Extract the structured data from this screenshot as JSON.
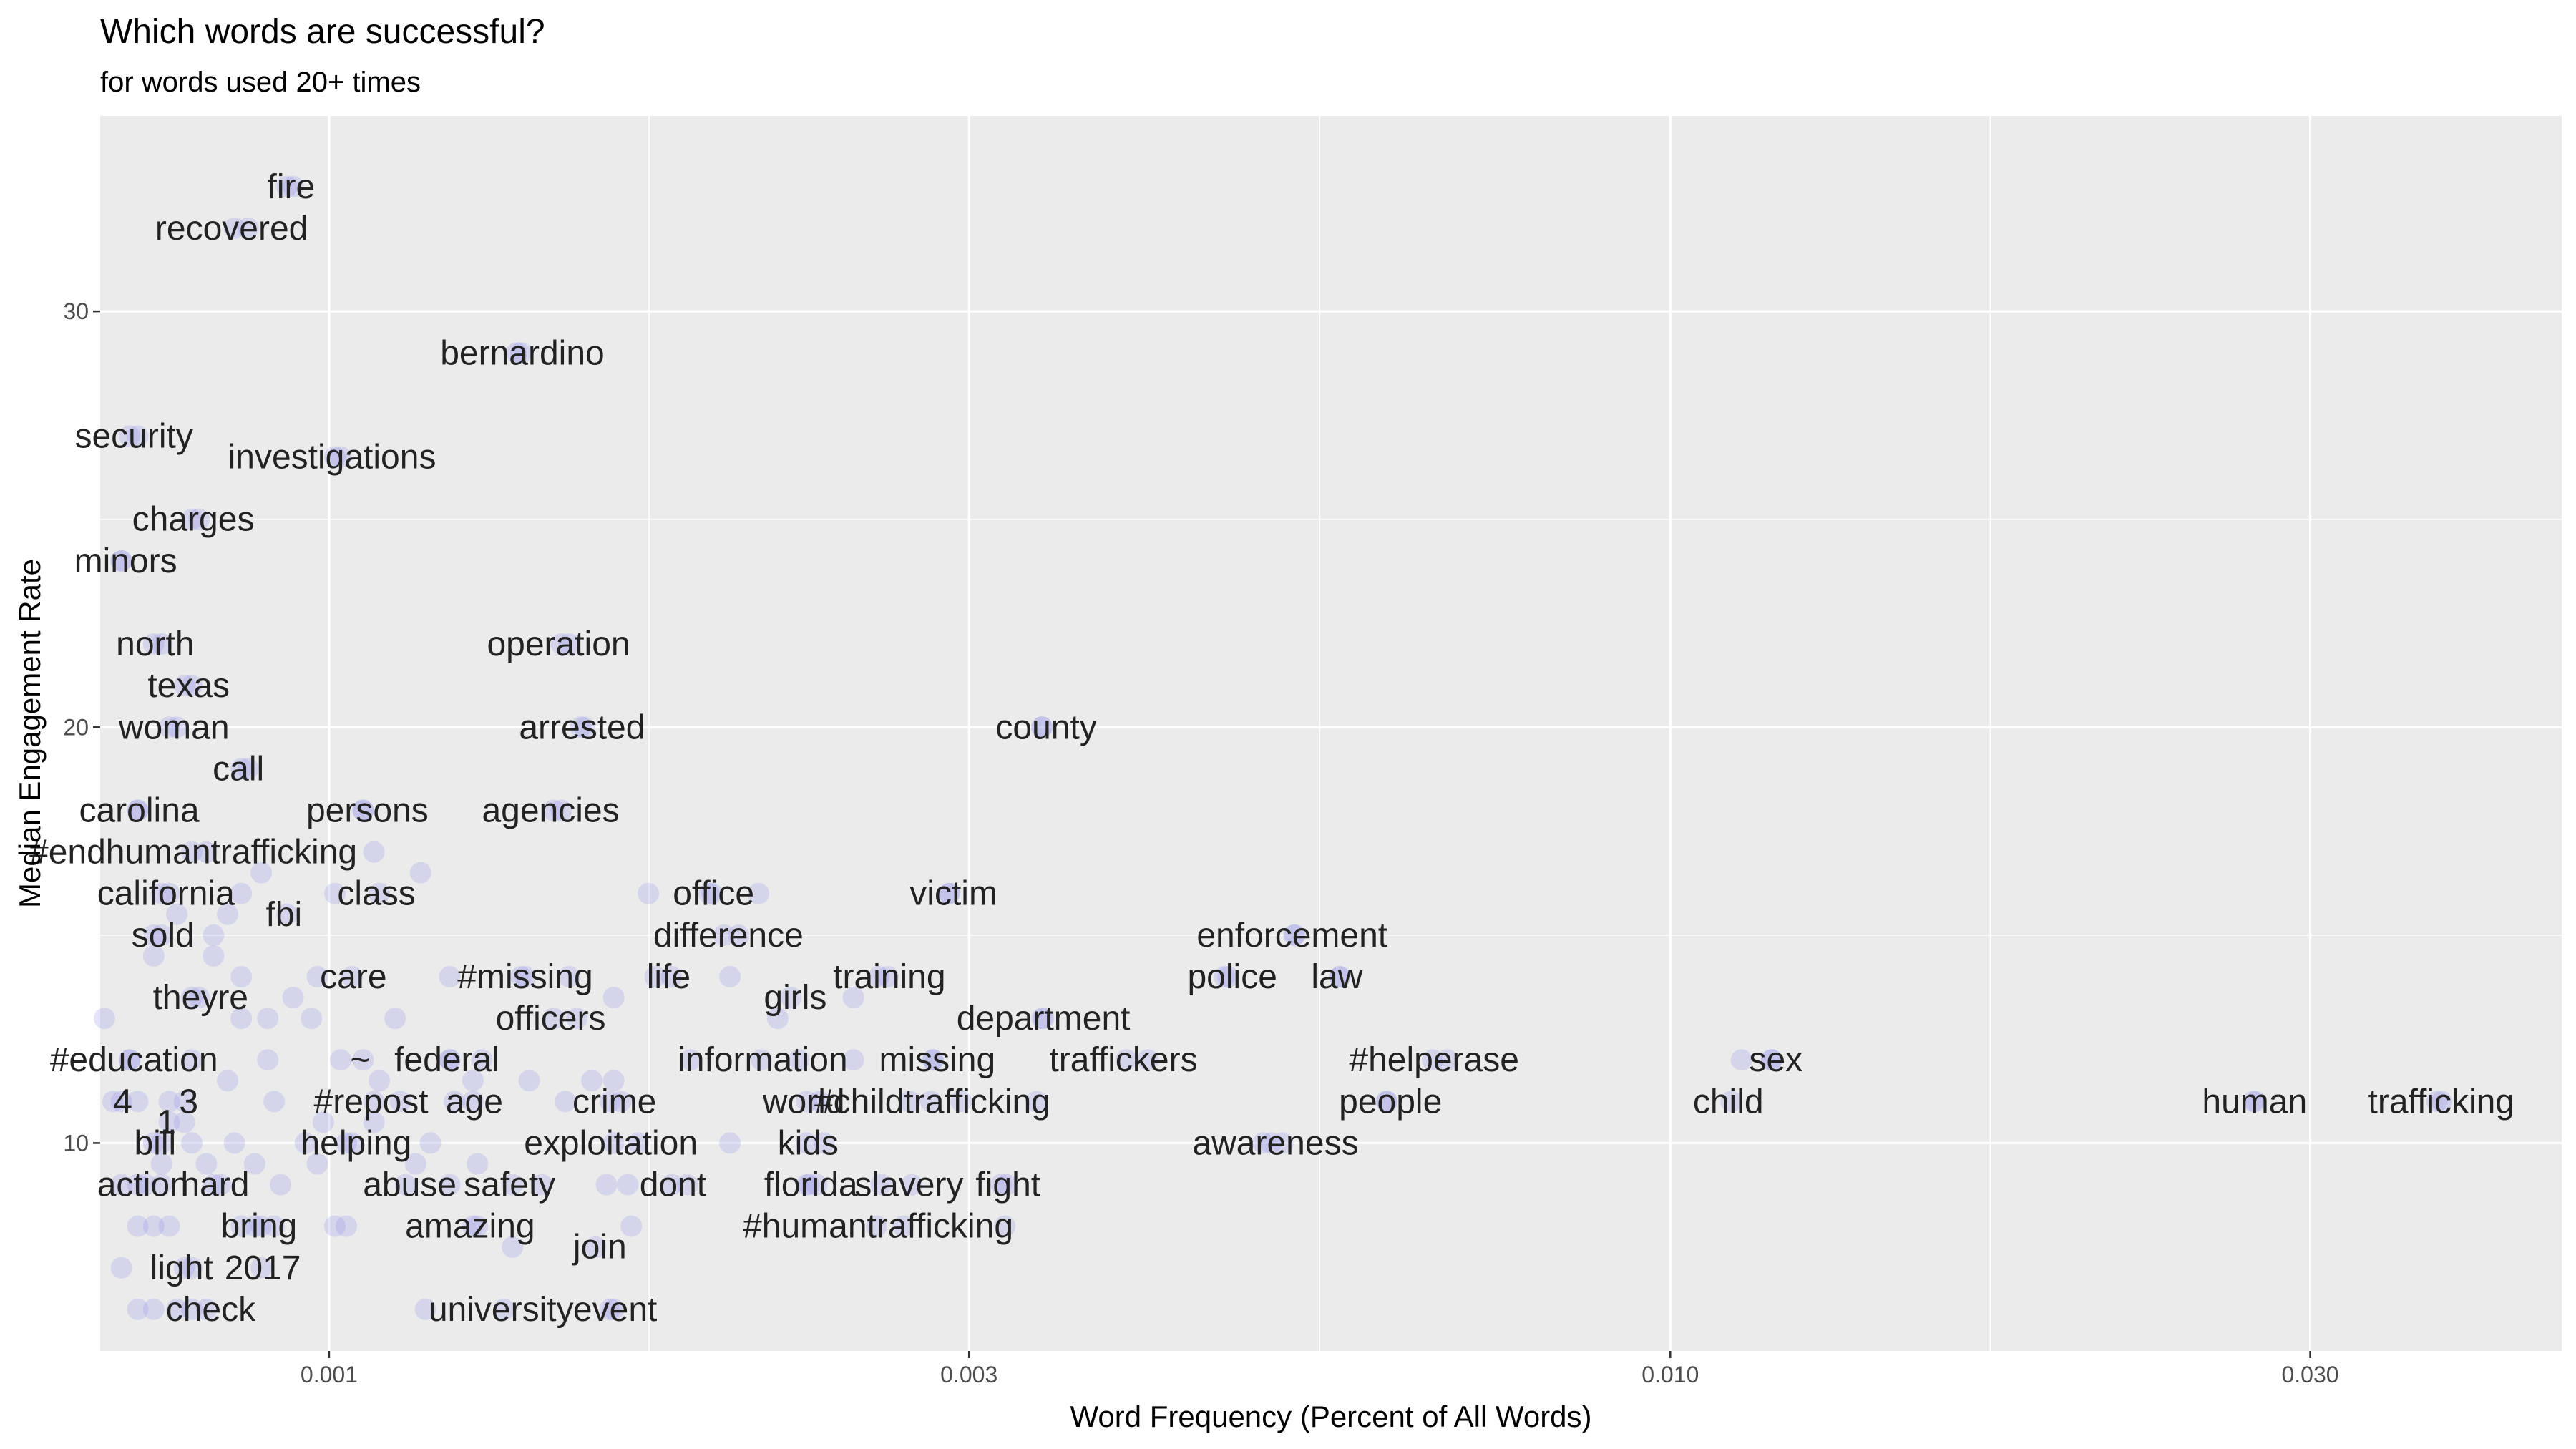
{
  "chart_data": {
    "type": "scatter",
    "title": "Which words are successful?",
    "subtitle": "for words used 20+ times",
    "xlabel": "Word Frequency (Percent of All Words)",
    "ylabel": "Median Engagement Rate",
    "x_scale": "log10",
    "xlim": [
      0.000675,
      0.0462
    ],
    "ylim": [
      5.0,
      34.7
    ],
    "x_ticks": [
      0.001,
      0.003,
      0.01,
      0.03
    ],
    "x_tick_labels": [
      "0.001",
      "0.003",
      "0.010",
      "0.030"
    ],
    "y_ticks": [
      10,
      20,
      30
    ],
    "y_tick_labels": [
      "10",
      "20",
      "30"
    ],
    "point_color": "#9999ee",
    "panel_color": "#ebebeb",
    "grid": true,
    "labeled_points": [
      {
        "word": "fire",
        "x": 0.00093,
        "y": 33.0
      },
      {
        "word": "recovered",
        "x": 0.00085,
        "y": 32.0
      },
      {
        "word": "bernardino",
        "x": 0.00139,
        "y": 29.0
      },
      {
        "word": "security",
        "x": 0.00071,
        "y": 27.0
      },
      {
        "word": "investigations",
        "x": 0.00101,
        "y": 26.5
      },
      {
        "word": "charges",
        "x": 0.00079,
        "y": 25.0
      },
      {
        "word": "minors",
        "x": 0.0007,
        "y": 24.0
      },
      {
        "word": "operation",
        "x": 0.00149,
        "y": 22.0
      },
      {
        "word": "north",
        "x": 0.00074,
        "y": 22.0
      },
      {
        "word": "texas",
        "x": 0.00078,
        "y": 21.0
      },
      {
        "word": "woman",
        "x": 0.00077,
        "y": 20.0
      },
      {
        "word": "arrested",
        "x": 0.00154,
        "y": 20.0
      },
      {
        "word": "county",
        "x": 0.0034,
        "y": 20.0
      },
      {
        "word": "call",
        "x": 0.00086,
        "y": 19.0
      },
      {
        "word": "carolina",
        "x": 0.00072,
        "y": 18.0
      },
      {
        "word": "persons",
        "x": 0.00106,
        "y": 18.0
      },
      {
        "word": "agencies",
        "x": 0.00147,
        "y": 18.0
      },
      {
        "word": "#endhumantrafficking",
        "x": 0.00079,
        "y": 17.0
      },
      {
        "word": "california",
        "x": 0.00075,
        "y": 16.0
      },
      {
        "word": "class",
        "x": 0.00109,
        "y": 16.0
      },
      {
        "word": "office",
        "x": 0.00193,
        "y": 16.0
      },
      {
        "word": "victim",
        "x": 0.0029,
        "y": 16.0
      },
      {
        "word": "fbi",
        "x": 0.00093,
        "y": 15.5
      },
      {
        "word": "sold",
        "x": 0.00075,
        "y": 15.0
      },
      {
        "word": "difference",
        "x": 0.00197,
        "y": 15.0
      },
      {
        "word": "enforcement",
        "x": 0.00525,
        "y": 15.0
      },
      {
        "word": "care",
        "x": 0.00104,
        "y": 14.0
      },
      {
        "word": "#missing",
        "x": 0.00139,
        "y": 14.0
      },
      {
        "word": "life",
        "x": 0.0018,
        "y": 14.0
      },
      {
        "word": "training",
        "x": 0.00261,
        "y": 14.0
      },
      {
        "word": "police",
        "x": 0.00468,
        "y": 14.0
      },
      {
        "word": "law",
        "x": 0.00567,
        "y": 14.0
      },
      {
        "word": "theyre",
        "x": 0.0008,
        "y": 13.5
      },
      {
        "word": "girls",
        "x": 0.00221,
        "y": 13.5
      },
      {
        "word": "officers",
        "x": 0.00147,
        "y": 13.0
      },
      {
        "word": "department",
        "x": 0.0034,
        "y": 13.0
      },
      {
        "word": "#education",
        "x": 0.00071,
        "y": 12.0
      },
      {
        "word": "federal",
        "x": 0.00123,
        "y": 12.0
      },
      {
        "word": "information",
        "x": 0.0021,
        "y": 12.0
      },
      {
        "word": "missing",
        "x": 0.00282,
        "y": 12.0
      },
      {
        "word": "traffickers",
        "x": 0.00393,
        "y": 12.0
      },
      {
        "word": "#helperase",
        "x": 0.00665,
        "y": 12.0
      },
      {
        "word": "sex",
        "x": 0.0119,
        "y": 12.0
      },
      {
        "word": "~",
        "x": 0.00106,
        "y": 12.0
      },
      {
        "word": "4",
        "x": 0.0007,
        "y": 11.0
      },
      {
        "word": "3",
        "x": 0.00078,
        "y": 11.0
      },
      {
        "word": "#repost",
        "x": 0.00108,
        "y": 11.0
      },
      {
        "word": "age",
        "x": 0.00128,
        "y": 11.0
      },
      {
        "word": "crime",
        "x": 0.00162,
        "y": 11.0
      },
      {
        "word": "world",
        "x": 0.00227,
        "y": 11.0
      },
      {
        "word": "#childtrafficking",
        "x": 0.00281,
        "y": 11.0
      },
      {
        "word": "people",
        "x": 0.00614,
        "y": 11.0
      },
      {
        "word": "child",
        "x": 0.0111,
        "y": 11.0
      },
      {
        "word": "human",
        "x": 0.0272,
        "y": 11.0
      },
      {
        "word": "trafficking",
        "x": 0.0373,
        "y": 11.0
      },
      {
        "word": "1",
        "x": 0.00076,
        "y": 10.5
      },
      {
        "word": "bill",
        "x": 0.00074,
        "y": 10.0
      },
      {
        "word": "helping",
        "x": 0.00104,
        "y": 10.0
      },
      {
        "word": "exploitation",
        "x": 0.00163,
        "y": 10.0
      },
      {
        "word": "kids",
        "x": 0.00227,
        "y": 10.0
      },
      {
        "word": "awareness",
        "x": 0.00504,
        "y": 10.0
      },
      {
        "word": "action",
        "x": 0.00073,
        "y": 9.0
      },
      {
        "word": "hard",
        "x": 0.00082,
        "y": 9.0
      },
      {
        "word": "abuse",
        "x": 0.00114,
        "y": 9.0
      },
      {
        "word": "safety",
        "x": 0.00137,
        "y": 9.0
      },
      {
        "word": "dont",
        "x": 0.0018,
        "y": 9.0
      },
      {
        "word": "florida",
        "x": 0.00227,
        "y": 9.0
      },
      {
        "word": "slavery",
        "x": 0.00272,
        "y": 9.0
      },
      {
        "word": "fight",
        "x": 0.0032,
        "y": 9.0
      },
      {
        "word": "bring",
        "x": 0.00088,
        "y": 8.0
      },
      {
        "word": "amazing",
        "x": 0.00128,
        "y": 8.0
      },
      {
        "word": "#humantrafficking",
        "x": 0.00256,
        "y": 8.0
      },
      {
        "word": "join",
        "x": 0.00158,
        "y": 7.5
      },
      {
        "word": "light",
        "x": 0.00078,
        "y": 7.0
      },
      {
        "word": "2017",
        "x": 0.00089,
        "y": 7.0
      },
      {
        "word": "check",
        "x": 0.00081,
        "y": 6.0
      },
      {
        "word": "university",
        "x": 0.00135,
        "y": 6.0
      },
      {
        "word": "event",
        "x": 0.00163,
        "y": 6.0
      }
    ],
    "unlabeled_points": [
      {
        "x": 0.00094,
        "y": 33.0
      },
      {
        "x": 0.00087,
        "y": 32.0
      },
      {
        "x": 0.00138,
        "y": 29.0
      },
      {
        "x": 0.00072,
        "y": 27.0
      },
      {
        "x": 0.00102,
        "y": 26.5
      },
      {
        "x": 0.0008,
        "y": 25.0
      },
      {
        "x": 0.0007,
        "y": 24.0
      },
      {
        "x": 0.00151,
        "y": 22.0
      },
      {
        "x": 0.00075,
        "y": 22.0
      },
      {
        "x": 0.00079,
        "y": 21.0
      },
      {
        "x": 0.00076,
        "y": 20.0
      },
      {
        "x": 0.00155,
        "y": 20.0
      },
      {
        "x": 0.0034,
        "y": 20.0
      },
      {
        "x": 0.00087,
        "y": 19.0
      },
      {
        "x": 0.00072,
        "y": 18.0
      },
      {
        "x": 0.00106,
        "y": 18.0
      },
      {
        "x": 0.00149,
        "y": 18.0
      },
      {
        "x": 0.00081,
        "y": 17.0
      },
      {
        "x": 0.00089,
        "y": 16.5
      },
      {
        "x": 0.00117,
        "y": 16.5
      },
      {
        "x": 0.00108,
        "y": 17.0
      },
      {
        "x": 0.00076,
        "y": 16.0
      },
      {
        "x": 0.00086,
        "y": 16.0
      },
      {
        "x": 0.00101,
        "y": 16.0
      },
      {
        "x": 0.00173,
        "y": 16.0
      },
      {
        "x": 0.00192,
        "y": 16.0
      },
      {
        "x": 0.00209,
        "y": 16.0
      },
      {
        "x": 0.0029,
        "y": 16.0
      },
      {
        "x": 0.00077,
        "y": 15.5
      },
      {
        "x": 0.00084,
        "y": 15.5
      },
      {
        "x": 0.00074,
        "y": 15.0
      },
      {
        "x": 0.00082,
        "y": 15.0
      },
      {
        "x": 0.00202,
        "y": 15.0
      },
      {
        "x": 0.00524,
        "y": 15.0
      },
      {
        "x": 0.00074,
        "y": 14.5
      },
      {
        "x": 0.00082,
        "y": 14.5
      },
      {
        "x": 0.00086,
        "y": 14.0
      },
      {
        "x": 0.00098,
        "y": 14.0
      },
      {
        "x": 0.00123,
        "y": 14.0
      },
      {
        "x": 0.0014,
        "y": 14.0
      },
      {
        "x": 0.00151,
        "y": 14.0
      },
      {
        "x": 0.00175,
        "y": 14.0
      },
      {
        "x": 0.00199,
        "y": 14.0
      },
      {
        "x": 0.00257,
        "y": 14.0
      },
      {
        "x": 0.00465,
        "y": 14.0
      },
      {
        "x": 0.00567,
        "y": 14.0
      },
      {
        "x": 0.00079,
        "y": 13.5
      },
      {
        "x": 0.00094,
        "y": 13.5
      },
      {
        "x": 0.00163,
        "y": 13.5
      },
      {
        "x": 0.00246,
        "y": 13.5
      },
      {
        "x": 0.00068,
        "y": 13.0
      },
      {
        "x": 0.00086,
        "y": 13.0
      },
      {
        "x": 0.0009,
        "y": 13.0
      },
      {
        "x": 0.00097,
        "y": 13.0
      },
      {
        "x": 0.00112,
        "y": 13.0
      },
      {
        "x": 0.00153,
        "y": 13.0
      },
      {
        "x": 0.00216,
        "y": 13.0
      },
      {
        "x": 0.00341,
        "y": 13.0
      },
      {
        "x": 0.00071,
        "y": 12.0
      },
      {
        "x": 0.00079,
        "y": 12.0
      },
      {
        "x": 0.0009,
        "y": 12.0
      },
      {
        "x": 0.00102,
        "y": 12.0
      },
      {
        "x": 0.00123,
        "y": 12.0
      },
      {
        "x": 0.0013,
        "y": 12.0
      },
      {
        "x": 0.00186,
        "y": 12.0
      },
      {
        "x": 0.00224,
        "y": 12.0
      },
      {
        "x": 0.00246,
        "y": 12.0
      },
      {
        "x": 0.00282,
        "y": 12.0
      },
      {
        "x": 0.00408,
        "y": 12.0
      },
      {
        "x": 0.00682,
        "y": 12.0
      },
      {
        "x": 0.0113,
        "y": 12.0
      },
      {
        "x": 0.0119,
        "y": 12.0
      },
      {
        "x": 0.00084,
        "y": 11.5
      },
      {
        "x": 0.00109,
        "y": 11.5
      },
      {
        "x": 0.00128,
        "y": 11.5
      },
      {
        "x": 0.00141,
        "y": 11.5
      },
      {
        "x": 0.00157,
        "y": 11.5
      },
      {
        "x": 0.00163,
        "y": 11.5
      },
      {
        "x": 0.00069,
        "y": 11.0
      },
      {
        "x": 0.00072,
        "y": 11.0
      },
      {
        "x": 0.00076,
        "y": 11.0
      },
      {
        "x": 0.00091,
        "y": 11.0
      },
      {
        "x": 0.00113,
        "y": 11.0
      },
      {
        "x": 0.00124,
        "y": 11.0
      },
      {
        "x": 0.0015,
        "y": 11.0
      },
      {
        "x": 0.00165,
        "y": 11.0
      },
      {
        "x": 0.00232,
        "y": 11.0
      },
      {
        "x": 0.00271,
        "y": 11.0
      },
      {
        "x": 0.00296,
        "y": 11.0
      },
      {
        "x": 0.00337,
        "y": 11.0
      },
      {
        "x": 0.00615,
        "y": 11.0
      },
      {
        "x": 0.0273,
        "y": 11.0
      },
      {
        "x": 0.0376,
        "y": 11.0
      },
      {
        "x": 0.00078,
        "y": 10.5
      },
      {
        "x": 0.00099,
        "y": 10.5
      },
      {
        "x": 0.00108,
        "y": 10.5
      },
      {
        "x": 0.00075,
        "y": 10.0
      },
      {
        "x": 0.00079,
        "y": 10.0
      },
      {
        "x": 0.00085,
        "y": 10.0
      },
      {
        "x": 0.00096,
        "y": 10.0
      },
      {
        "x": 0.00103,
        "y": 10.0
      },
      {
        "x": 0.00119,
        "y": 10.0
      },
      {
        "x": 0.0017,
        "y": 10.0
      },
      {
        "x": 0.00199,
        "y": 10.0
      },
      {
        "x": 0.00234,
        "y": 10.0
      },
      {
        "x": 0.00497,
        "y": 10.0
      },
      {
        "x": 0.00514,
        "y": 10.0
      },
      {
        "x": 0.00075,
        "y": 9.5
      },
      {
        "x": 0.00081,
        "y": 9.5
      },
      {
        "x": 0.00088,
        "y": 9.5
      },
      {
        "x": 0.00098,
        "y": 9.5
      },
      {
        "x": 0.00116,
        "y": 9.5
      },
      {
        "x": 0.00129,
        "y": 9.5
      },
      {
        "x": 0.0007,
        "y": 9.0
      },
      {
        "x": 0.00072,
        "y": 9.0
      },
      {
        "x": 0.00075,
        "y": 9.0
      },
      {
        "x": 0.00083,
        "y": 9.0
      },
      {
        "x": 0.00092,
        "y": 9.0
      },
      {
        "x": 0.00123,
        "y": 9.0
      },
      {
        "x": 0.00144,
        "y": 9.0
      },
      {
        "x": 0.00161,
        "y": 9.0
      },
      {
        "x": 0.00167,
        "y": 9.0
      },
      {
        "x": 0.00185,
        "y": 9.0
      },
      {
        "x": 0.00228,
        "y": 9.0
      },
      {
        "x": 0.00231,
        "y": 9.0
      },
      {
        "x": 0.00258,
        "y": 9.0
      },
      {
        "x": 0.00317,
        "y": 9.0
      },
      {
        "x": 0.00072,
        "y": 8.0
      },
      {
        "x": 0.00074,
        "y": 8.0
      },
      {
        "x": 0.00076,
        "y": 8.0
      },
      {
        "x": 0.00086,
        "y": 8.0
      },
      {
        "x": 0.00089,
        "y": 8.0
      },
      {
        "x": 0.00091,
        "y": 8.0
      },
      {
        "x": 0.00101,
        "y": 8.0
      },
      {
        "x": 0.00103,
        "y": 8.0
      },
      {
        "x": 0.00129,
        "y": 8.0
      },
      {
        "x": 0.00168,
        "y": 8.0
      },
      {
        "x": 0.00268,
        "y": 8.0
      },
      {
        "x": 0.00319,
        "y": 8.0
      },
      {
        "x": 0.00137,
        "y": 7.5
      },
      {
        "x": 0.0007,
        "y": 7.0
      },
      {
        "x": 0.00079,
        "y": 7.0
      },
      {
        "x": 0.00072,
        "y": 6.0
      },
      {
        "x": 0.00074,
        "y": 6.0
      },
      {
        "x": 0.00077,
        "y": 6.0
      },
      {
        "x": 0.00079,
        "y": 6.0
      },
      {
        "x": 0.00118,
        "y": 6.0
      },
      {
        "x": 0.00162,
        "y": 6.0
      }
    ]
  }
}
